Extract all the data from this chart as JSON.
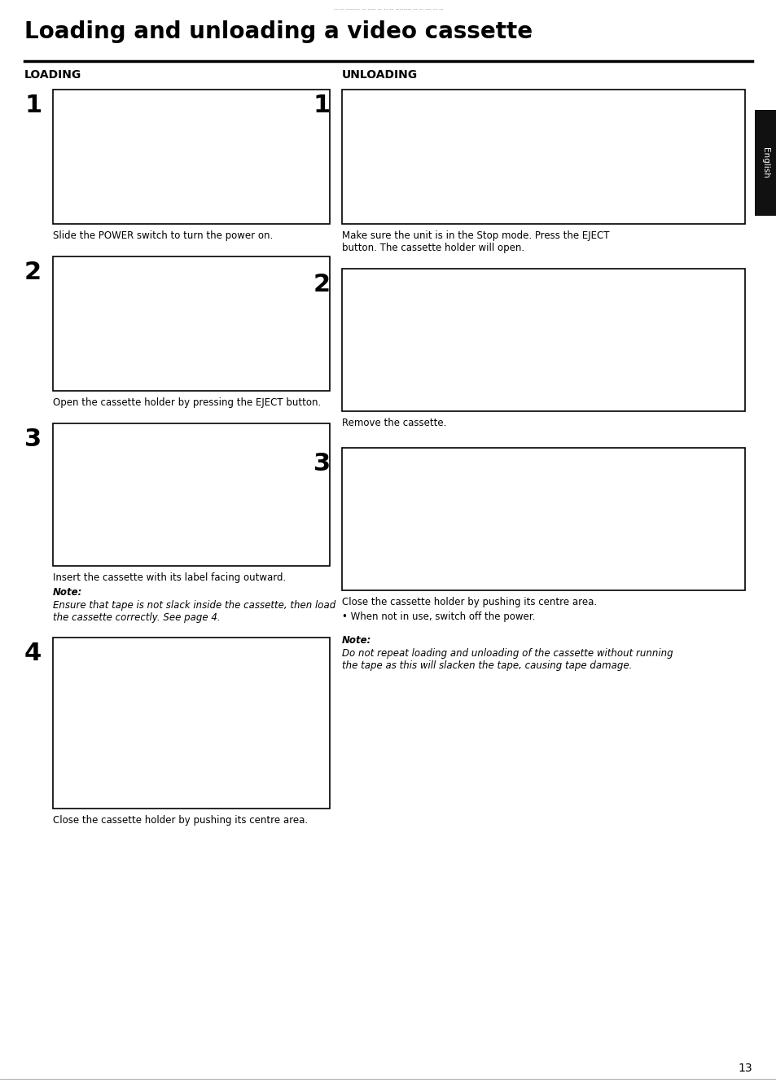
{
  "bg_color": "#ffffff",
  "text_color": "#000000",
  "title": "Loading and unloading a video cassette",
  "title_fontsize": 20,
  "page_number": "13",
  "loading_label": "LOADING",
  "unloading_label": "UNLOADING",
  "english_tab_text": "English",
  "loading_steps": [
    {
      "num": "1",
      "caption": "Slide the POWER switch to turn the power on.",
      "caption_italic": false,
      "note_label": "",
      "note_text": ""
    },
    {
      "num": "2",
      "caption": "Open the cassette holder by pressing the EJECT button.",
      "caption_italic": false,
      "note_label": "",
      "note_text": ""
    },
    {
      "num": "3",
      "caption": "Insert the cassette with its label facing outward.",
      "caption_italic": false,
      "note_label": "Note:",
      "note_text": "Ensure that tape is not slack inside the cassette, then load\nthe cassette correctly. See page 4."
    },
    {
      "num": "4",
      "caption": "Close the cassette holder by pushing its centre area.",
      "caption_italic": false,
      "note_label": "",
      "note_text": ""
    }
  ],
  "unloading_steps": [
    {
      "num": "1",
      "caption": "Make sure the unit is in the Stop mode. Press the EJECT\nbutton. The cassette holder will open.",
      "caption_italic": false,
      "note_label": "",
      "note_text": "",
      "bullet": ""
    },
    {
      "num": "2",
      "caption": "Remove the cassette.",
      "caption_italic": false,
      "note_label": "",
      "note_text": "",
      "bullet": ""
    },
    {
      "num": "3",
      "caption": "Close the cassette holder by pushing its centre area.",
      "caption_italic": false,
      "note_label": "Note:",
      "note_text": "Do not repeat loading and unloading of the cassette without running\nthe tape as this will slacken the tape, causing tape damage.",
      "bullet": "• When not in use, switch off the power."
    }
  ],
  "top_dashes": "-- -- ------- -- ---- -- -- -- -------- -- -- --- -- --",
  "img_border": "#000000",
  "img_bg": "#ffffff"
}
